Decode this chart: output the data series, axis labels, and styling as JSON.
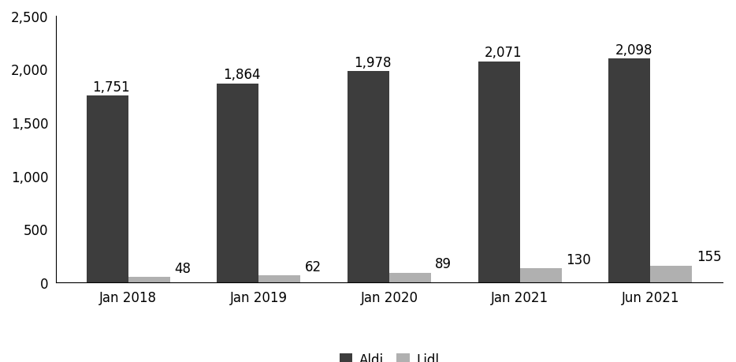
{
  "categories": [
    "Jan 2018",
    "Jan 2019",
    "Jan 2020",
    "Jan 2021",
    "Jun 2021"
  ],
  "aldi_values": [
    1751,
    1864,
    1978,
    2071,
    2098
  ],
  "lidl_values": [
    48,
    62,
    89,
    130,
    155
  ],
  "aldi_color": "#3d3d3d",
  "lidl_color": "#b0b0b0",
  "aldi_label": "Aldi",
  "lidl_label": "Lidl",
  "ylim": [
    0,
    2500
  ],
  "yticks": [
    0,
    500,
    1000,
    1500,
    2000,
    2500
  ],
  "bar_width": 0.32,
  "background_color": "#ffffff",
  "tick_fontsize": 12,
  "legend_fontsize": 12,
  "annotation_fontsize": 12
}
